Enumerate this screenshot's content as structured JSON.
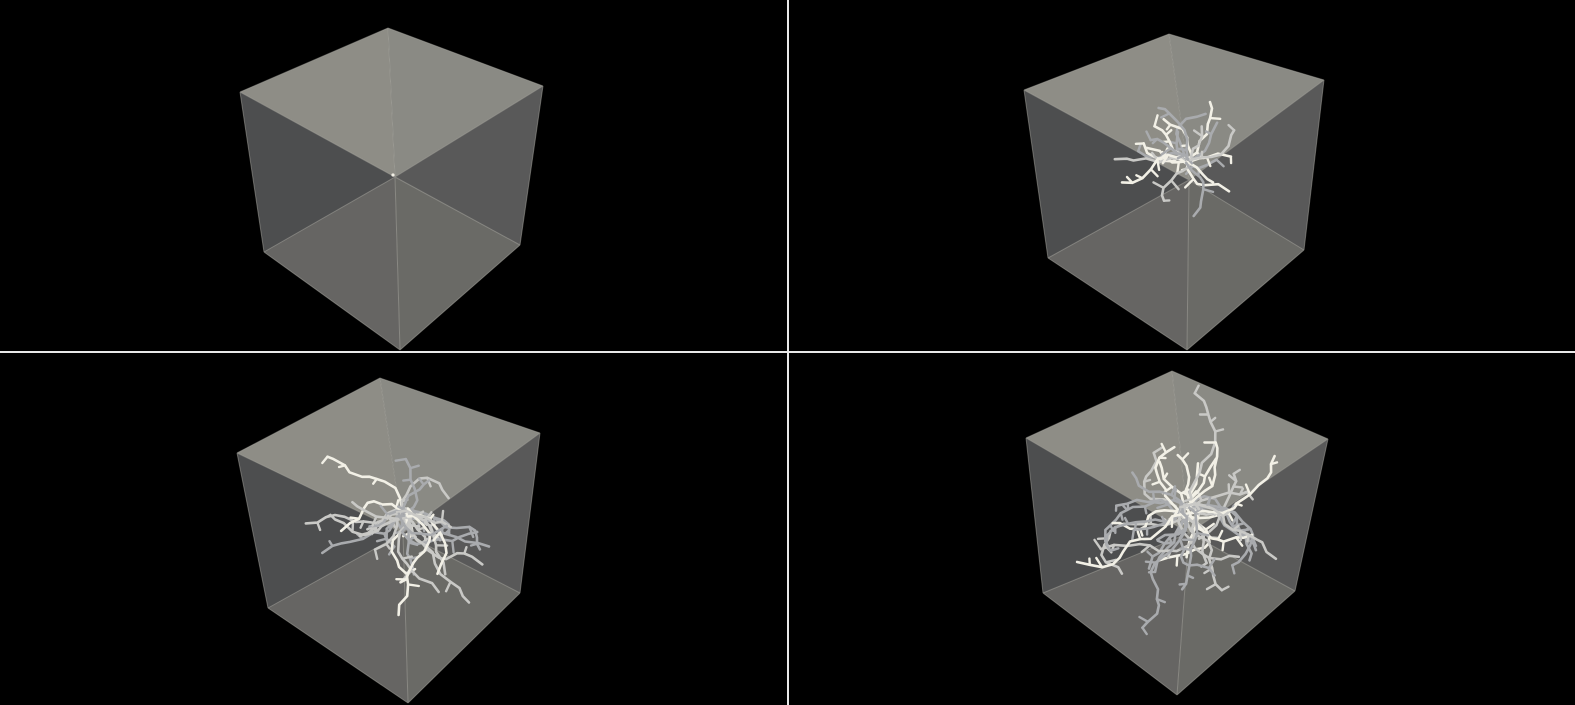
{
  "colors": {
    "background": "#000000",
    "divider": "#e8e8e8",
    "face_top_left": "#8e8d86",
    "face_top_right": "#8a8a84",
    "face_left": "#4d4e4f",
    "face_right": "#595959",
    "face_bottom_left": "#6b6a66",
    "face_bottom_right": "#6d6d69",
    "edge": "#aaa9a2",
    "branch_bright": "#f2f0e6",
    "branch_mid": "#c9c9c6",
    "branch_dim": "#a9abae"
  },
  "views": [
    {
      "id": "view-1",
      "growth": 0,
      "seed": 11
    },
    {
      "id": "view-2",
      "growth": 0.35,
      "seed": 23
    },
    {
      "id": "view-3",
      "growth": 0.7,
      "seed": 37
    },
    {
      "id": "view-4",
      "growth": 1.0,
      "seed": 53
    }
  ]
}
